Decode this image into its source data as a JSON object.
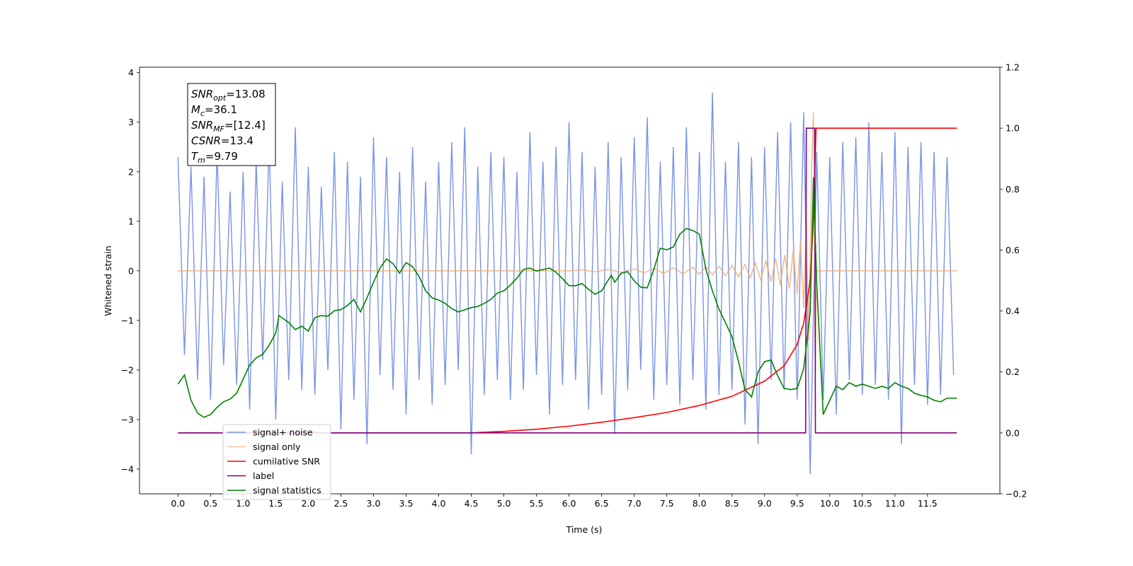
{
  "chart_data": {
    "type": "line",
    "xlabel": "Time (s)",
    "ylabel": "Whitened strain",
    "xlim": [
      -0.59,
      12.61
    ],
    "ylim": [
      -4.5,
      4.11
    ],
    "y2lim": [
      -0.2,
      1.2
    ],
    "xticks": [
      {
        "value": 0,
        "label": "0.0"
      },
      {
        "value": 0.5,
        "label": "0.5"
      },
      {
        "value": 1,
        "label": "1.0"
      },
      {
        "value": 1.5,
        "label": "1.5"
      },
      {
        "value": 2,
        "label": "2.0"
      },
      {
        "value": 2.5,
        "label": "2.5"
      },
      {
        "value": 3,
        "label": "3.0"
      },
      {
        "value": 3.5,
        "label": "3.5"
      },
      {
        "value": 4,
        "label": "4.0"
      },
      {
        "value": 4.5,
        "label": "4.5"
      },
      {
        "value": 5,
        "label": "5.0"
      },
      {
        "value": 5.5,
        "label": "5.5"
      },
      {
        "value": 6,
        "label": "6.0"
      },
      {
        "value": 6.5,
        "label": "6.5"
      },
      {
        "value": 7,
        "label": "7.0"
      },
      {
        "value": 7.5,
        "label": "7.5"
      },
      {
        "value": 8,
        "label": "8.0"
      },
      {
        "value": 8.5,
        "label": "8.5"
      },
      {
        "value": 9,
        "label": "9.0"
      },
      {
        "value": 9.5,
        "label": "9.5"
      },
      {
        "value": 10,
        "label": "10.0"
      },
      {
        "value": 10.5,
        "label": "10.5"
      },
      {
        "value": 11,
        "label": "11.0"
      },
      {
        "value": 11.5,
        "label": "11.5"
      }
    ],
    "yticks": [
      {
        "value": -4,
        "label": "−4"
      },
      {
        "value": -3,
        "label": "−3"
      },
      {
        "value": -2,
        "label": "−2"
      },
      {
        "value": -1,
        "label": "−1"
      },
      0,
      1,
      2,
      3,
      4
    ],
    "y2ticks": [
      {
        "value": -0.2,
        "label": "−0.2"
      },
      {
        "value": 0,
        "label": "0.0"
      },
      0.2,
      0.4,
      0.6,
      0.8,
      {
        "value": 1,
        "label": "1.0"
      },
      1.2
    ],
    "legend": "lower left",
    "annotation": [
      {
        "base": "SNR",
        "sub": "opt",
        "text": "=13.08"
      },
      {
        "base": "M",
        "sub": "c",
        "text": "=36.1"
      },
      {
        "base": "SNR",
        "sub": "MF",
        "text": "=[12.4]"
      },
      {
        "base": "CSNR",
        "sub": "",
        "text": "=13.4"
      },
      {
        "base": "T",
        "sub": "m",
        "text": "=9.79"
      }
    ],
    "series": [
      {
        "name": "signal+ noise",
        "color": "#7a93e6",
        "axis": "y",
        "x": [
          0,
          0.1,
          0.2,
          0.3,
          0.4,
          0.5,
          0.6,
          0.7,
          0.8,
          0.9,
          1,
          1.1,
          1.2,
          1.3,
          1.4,
          1.5,
          1.6,
          1.7,
          1.8,
          1.9,
          2,
          2.1,
          2.2,
          2.3,
          2.4,
          2.5,
          2.6,
          2.7,
          2.8,
          2.9,
          3,
          3.1,
          3.2,
          3.3,
          3.4,
          3.5,
          3.6,
          3.7,
          3.8,
          3.9,
          4,
          4.1,
          4.2,
          4.3,
          4.4,
          4.5,
          4.6,
          4.7,
          4.8,
          4.9,
          5,
          5.1,
          5.2,
          5.3,
          5.4,
          5.5,
          5.6,
          5.7,
          5.8,
          5.9,
          6,
          6.1,
          6.2,
          6.3,
          6.4,
          6.5,
          6.6,
          6.7,
          6.8,
          6.9,
          7,
          7.1,
          7.2,
          7.3,
          7.4,
          7.5,
          7.6,
          7.7,
          7.8,
          7.9,
          8,
          8.1,
          8.2,
          8.3,
          8.4,
          8.5,
          8.6,
          8.7,
          8.8,
          8.9,
          9,
          9.1,
          9.2,
          9.3,
          9.4,
          9.5,
          9.6,
          9.7,
          9.8,
          9.9,
          10,
          10.1,
          10.2,
          10.3,
          10.4,
          10.5,
          10.6,
          10.7,
          10.8,
          10.9,
          11,
          11.1,
          11.2,
          11.3,
          11.4,
          11.5,
          11.6,
          11.7,
          11.8,
          11.9
        ],
        "values": [
          2.3,
          -1.7,
          2.1,
          -2.2,
          1.9,
          -2.6,
          2.4,
          -1.9,
          1.6,
          -2.3,
          2.0,
          -2.8,
          2.2,
          -1.8,
          2.6,
          -3.0,
          1.8,
          -2.2,
          2.9,
          -2.4,
          2.1,
          -2.5,
          1.7,
          -2.0,
          2.4,
          -3.2,
          2.2,
          -2.6,
          1.9,
          -3.5,
          2.7,
          -2.1,
          2.3,
          -2.4,
          2.0,
          -2.9,
          2.5,
          -2.2,
          1.8,
          -2.7,
          2.2,
          -2.3,
          2.6,
          -2.0,
          2.9,
          -3.7,
          2.1,
          -2.5,
          2.4,
          -2.2,
          2.3,
          -2.6,
          2.0,
          -2.4,
          2.8,
          -2.1,
          2.2,
          -2.9,
          2.5,
          -2.3,
          3.0,
          -2.2,
          2.4,
          -2.8,
          2.1,
          -2.5,
          2.6,
          -3.3,
          2.3,
          -2.4,
          2.7,
          -2.0,
          3.1,
          -2.6,
          2.2,
          -2.3,
          2.5,
          -2.7,
          2.9,
          -2.2,
          2.4,
          -2.8,
          3.6,
          -2.5,
          2.2,
          -2.4,
          2.6,
          -3.1,
          2.3,
          -3.5,
          2.5,
          -2.2,
          2.8,
          -2.4,
          3.0,
          -2.6,
          3.2,
          -4.1,
          2.4,
          -2.6,
          2.3,
          -2.9,
          2.6,
          -2.2,
          2.7,
          -2.5,
          3.0,
          -2.3,
          2.4,
          -2.6,
          2.8,
          -3.5,
          2.5,
          -2.3,
          2.6,
          -2.7,
          2.4,
          -2.5,
          2.3,
          -2.1
        ]
      },
      {
        "name": "signal only",
        "color": "#eeac72",
        "axis": "y",
        "x": [
          0,
          6.0,
          6.2,
          6.4,
          6.6,
          6.8,
          7.0,
          7.15,
          7.3,
          7.45,
          7.6,
          7.75,
          7.9,
          8.0,
          8.1,
          8.2,
          8.3,
          8.4,
          8.5,
          8.6,
          8.7,
          8.78,
          8.86,
          8.94,
          9.02,
          9.1,
          9.17,
          9.24,
          9.31,
          9.38,
          9.44,
          9.5,
          9.55,
          9.6,
          9.64,
          9.68,
          9.72,
          9.75,
          9.78,
          9.8,
          11.95
        ],
        "values": [
          0,
          0,
          0.02,
          -0.02,
          0.03,
          -0.03,
          0.04,
          -0.04,
          0.05,
          -0.05,
          0.06,
          -0.06,
          0.07,
          -0.07,
          0.08,
          -0.08,
          0.09,
          -0.1,
          0.11,
          -0.12,
          0.13,
          -0.14,
          0.16,
          -0.18,
          0.2,
          -0.22,
          0.25,
          -0.28,
          0.32,
          -0.36,
          0.42,
          -0.48,
          0.6,
          -0.75,
          1.0,
          -1.4,
          2.0,
          3.2,
          -2.0,
          0,
          0
        ]
      },
      {
        "name": "cumilative SNR",
        "color": "#ff0000",
        "axis": "y2",
        "x": [
          0,
          4.5,
          5.0,
          5.5,
          6.0,
          6.5,
          7.0,
          7.5,
          8.0,
          8.5,
          9.0,
          9.3,
          9.5,
          9.6,
          9.7,
          9.75,
          9.79,
          11.95
        ],
        "values": [
          0,
          0,
          0.005,
          0.012,
          0.022,
          0.035,
          0.05,
          0.067,
          0.09,
          0.12,
          0.17,
          0.22,
          0.29,
          0.36,
          0.5,
          0.7,
          1.0,
          1.0
        ]
      },
      {
        "name": "label",
        "color": "#800080",
        "axis": "y2",
        "x": [
          0,
          9.63,
          9.64,
          9.77,
          9.78,
          11.95
        ],
        "values": [
          0,
          0,
          1,
          1,
          0,
          0
        ]
      },
      {
        "name": "signal statistics",
        "color": "#008000",
        "axis": "y2",
        "x": [
          0,
          0.1,
          0.2,
          0.3,
          0.4,
          0.5,
          0.6,
          0.7,
          0.8,
          0.9,
          1.0,
          1.1,
          1.2,
          1.3,
          1.4,
          1.5,
          1.55,
          1.7,
          1.8,
          1.9,
          2.0,
          2.1,
          2.2,
          2.3,
          2.4,
          2.5,
          2.6,
          2.7,
          2.8,
          2.9,
          3.0,
          3.1,
          3.2,
          3.3,
          3.4,
          3.5,
          3.6,
          3.7,
          3.8,
          3.9,
          4.0,
          4.1,
          4.2,
          4.3,
          4.4,
          4.5,
          4.6,
          4.7,
          4.8,
          4.9,
          5.0,
          5.1,
          5.2,
          5.3,
          5.4,
          5.5,
          5.6,
          5.7,
          5.8,
          5.9,
          6.0,
          6.1,
          6.2,
          6.3,
          6.4,
          6.5,
          6.6,
          6.65,
          6.7,
          6.8,
          6.9,
          7.0,
          7.1,
          7.2,
          7.3,
          7.4,
          7.5,
          7.6,
          7.7,
          7.8,
          7.9,
          8.0,
          8.1,
          8.2,
          8.3,
          8.4,
          8.5,
          8.6,
          8.7,
          8.8,
          8.9,
          9.0,
          9.1,
          9.2,
          9.3,
          9.4,
          9.5,
          9.6,
          9.7,
          9.75,
          9.8,
          9.9,
          10.0,
          10.1,
          10.2,
          10.3,
          10.4,
          10.5,
          10.6,
          10.7,
          10.8,
          10.9,
          11.0,
          11.1,
          11.2,
          11.3,
          11.4,
          11.5,
          11.6,
          11.7,
          11.8,
          11.95
        ],
        "values": [
          0.16,
          0.19,
          0.107,
          0.065,
          0.051,
          0.06,
          0.084,
          0.102,
          0.111,
          0.13,
          0.176,
          0.223,
          0.246,
          0.258,
          0.288,
          0.327,
          0.385,
          0.362,
          0.339,
          0.35,
          0.334,
          0.378,
          0.385,
          0.383,
          0.401,
          0.404,
          0.418,
          0.438,
          0.397,
          0.443,
          0.494,
          0.541,
          0.571,
          0.555,
          0.524,
          0.559,
          0.545,
          0.513,
          0.466,
          0.443,
          0.436,
          0.425,
          0.408,
          0.397,
          0.404,
          0.411,
          0.415,
          0.425,
          0.438,
          0.459,
          0.466,
          0.485,
          0.508,
          0.536,
          0.541,
          0.531,
          0.536,
          0.541,
          0.527,
          0.506,
          0.483,
          0.483,
          0.49,
          0.471,
          0.455,
          0.466,
          0.501,
          0.517,
          0.494,
          0.524,
          0.529,
          0.499,
          0.478,
          0.476,
          0.536,
          0.606,
          0.601,
          0.61,
          0.652,
          0.671,
          0.664,
          0.652,
          0.536,
          0.466,
          0.406,
          0.362,
          0.316,
          0.234,
          0.142,
          0.118,
          0.2,
          0.234,
          0.239,
          0.188,
          0.146,
          0.142,
          0.146,
          0.211,
          0.397,
          0.838,
          0.49,
          0.06,
          0.107,
          0.153,
          0.142,
          0.165,
          0.153,
          0.16,
          0.153,
          0.146,
          0.153,
          0.146,
          0.165,
          0.153,
          0.146,
          0.13,
          0.123,
          0.118,
          0.107,
          0.102,
          0.114,
          0.114
        ]
      }
    ]
  }
}
